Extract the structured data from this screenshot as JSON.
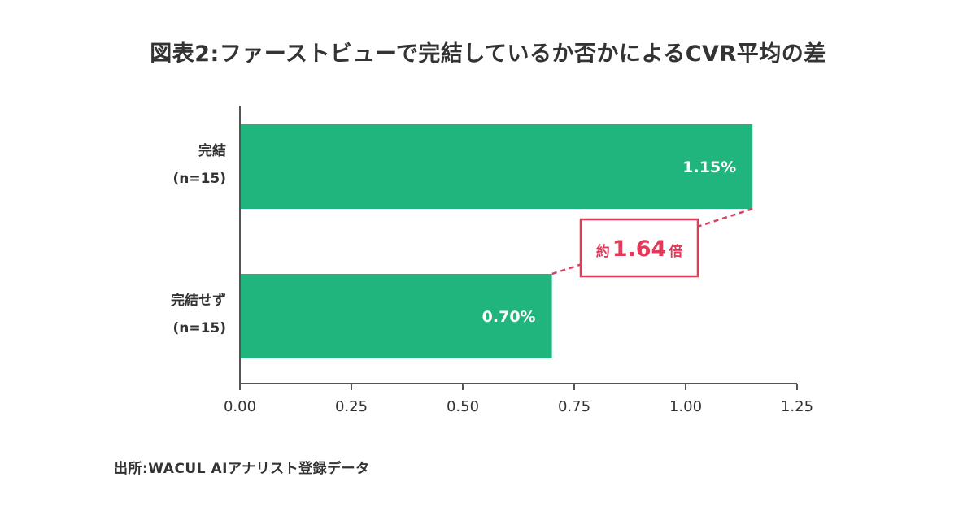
{
  "chart_data": {
    "type": "bar",
    "orientation": "horizontal",
    "title": "図表2:ファーストビューで完結しているか否かによるCVR平均の差",
    "categories": [
      {
        "label_line1": "完結",
        "label_line2": "(n=15)"
      },
      {
        "label_line1": "完結せず",
        "label_line2": "(n=15)"
      }
    ],
    "values": [
      1.15,
      0.7
    ],
    "value_labels": [
      "1.15%",
      "0.70%"
    ],
    "xlim": [
      0,
      1.25
    ],
    "xticks": [
      0.0,
      0.25,
      0.5,
      0.75,
      1.0,
      1.25
    ],
    "xtick_labels": [
      "0.00",
      "0.25",
      "0.50",
      "0.75",
      "1.00",
      "1.25"
    ],
    "grid": false,
    "annotation": {
      "prefix": "約",
      "value": "1.64",
      "suffix": "倍"
    },
    "colors": {
      "bar": "#1fb57d",
      "annotation": "#e03c5a",
      "axis": "#555555",
      "text": "#333333"
    }
  },
  "source": "出所:WACUL AIアナリスト登録データ"
}
